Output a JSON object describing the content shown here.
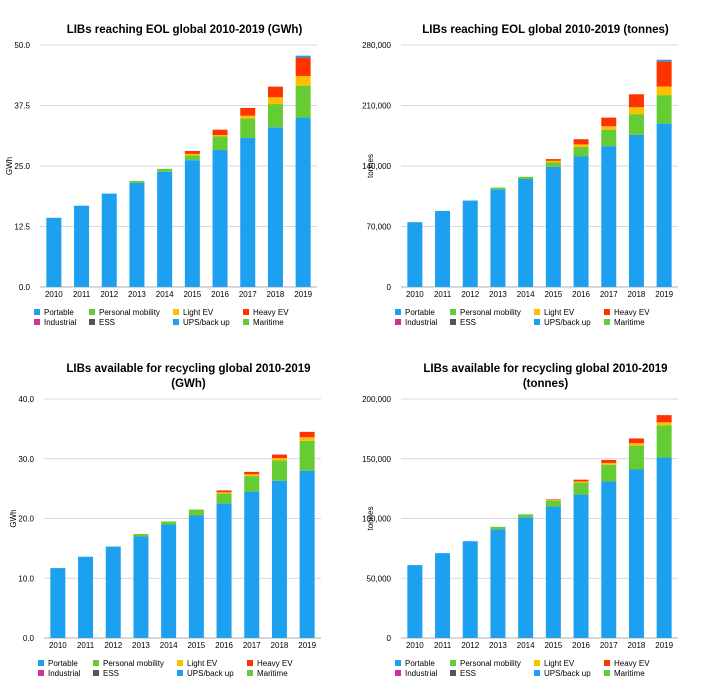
{
  "colors": {
    "portable": "#1ea0f0",
    "personal_mobility": "#66cc33",
    "light_ev": "#ffbf00",
    "heavy_ev": "#ff3300",
    "industrial": "#cc3399",
    "ess": "#555555",
    "ups_backup": "#1ea0f0",
    "maritime": "#66cc33",
    "grid": "#cccccc"
  },
  "legend": [
    {
      "label": "Portable",
      "color": "#1ea0f0"
    },
    {
      "label": "Personal mobility",
      "color": "#66cc33"
    },
    {
      "label": "Light EV",
      "color": "#ffbf00"
    },
    {
      "label": "Heavy EV",
      "color": "#ff3300"
    },
    {
      "label": "Industrial",
      "color": "#cc3399"
    },
    {
      "label": "ESS",
      "color": "#555555"
    },
    {
      "label": "UPS/back up",
      "color": "#1ea0f0"
    },
    {
      "label": "Maritime",
      "color": "#66cc33"
    }
  ],
  "chart_data": [
    {
      "type": "bar",
      "stacked": true,
      "title": [
        "LIBs reaching EOL global 2010-2019 (GWh)"
      ],
      "ylabel": "GWh",
      "ylim": [
        0,
        50
      ],
      "yticks": [
        "0.0",
        "12.5",
        "25.0",
        "37.5",
        "50.0"
      ],
      "grid": true,
      "legend_position": "bottom",
      "categories": [
        "2010",
        "2011",
        "2012",
        "2013",
        "2014",
        "2015",
        "2016",
        "2017",
        "2018",
        "2019"
      ],
      "series": [
        {
          "name": "Portable",
          "color": "#1ea0f0",
          "values": [
            14.3,
            16.8,
            19.3,
            21.5,
            23.8,
            26.2,
            28.3,
            30.8,
            33.0,
            35.0
          ]
        },
        {
          "name": "Personal mobility",
          "color": "#66cc33",
          "values": [
            0,
            0,
            0,
            0.4,
            0.6,
            1.0,
            2.8,
            4.0,
            4.8,
            6.6
          ]
        },
        {
          "name": "Light EV",
          "color": "#ffbf00",
          "values": [
            0,
            0,
            0,
            0,
            0,
            0.3,
            0.3,
            0.6,
            1.4,
            2.0
          ]
        },
        {
          "name": "Heavy EV",
          "color": "#ff3300",
          "values": [
            0,
            0,
            0,
            0,
            0,
            0.6,
            1.1,
            1.6,
            2.2,
            3.8
          ]
        },
        {
          "name": "UPS/back up",
          "color": "#1ea0f0",
          "values": [
            0,
            0,
            0,
            0,
            0,
            0,
            0,
            0,
            0,
            0.4
          ]
        }
      ]
    },
    {
      "type": "bar",
      "stacked": true,
      "title": [
        "LIBs reaching EOL global 2010-2019 (tonnes)"
      ],
      "ylabel": "tonnes",
      "ylim": [
        0,
        280000
      ],
      "yticks": [
        "0",
        "70,000",
        "140,000",
        "210,000",
        "280,000"
      ],
      "grid": true,
      "legend_position": "bottom",
      "categories": [
        "2010",
        "2011",
        "2012",
        "2013",
        "2014",
        "2015",
        "2016",
        "2017",
        "2018",
        "2019"
      ],
      "series": [
        {
          "name": "Portable",
          "color": "#1ea0f0",
          "values": [
            75000,
            88000,
            100000,
            113000,
            125000,
            139000,
            151000,
            163000,
            176000,
            189000
          ]
        },
        {
          "name": "Personal mobility",
          "color": "#66cc33",
          "values": [
            0,
            0,
            0,
            2000,
            2500,
            5000,
            11000,
            19000,
            24000,
            33000
          ]
        },
        {
          "name": "Light EV",
          "color": "#ffbf00",
          "values": [
            0,
            0,
            0,
            0,
            0,
            2000,
            3000,
            4000,
            8000,
            10000
          ]
        },
        {
          "name": "Heavy EV",
          "color": "#ff3300",
          "values": [
            0,
            0,
            0,
            0,
            0,
            2000,
            6000,
            10000,
            15000,
            29000
          ]
        },
        {
          "name": "UPS/back up",
          "color": "#1ea0f0",
          "values": [
            0,
            0,
            0,
            0,
            0,
            0,
            0,
            0,
            0,
            2000
          ]
        }
      ]
    },
    {
      "type": "bar",
      "stacked": true,
      "title": [
        "LIBs available for recycling global 2010-2019",
        "(GWh)"
      ],
      "ylabel": "GWh",
      "ylim": [
        0,
        40
      ],
      "yticks": [
        "0.0",
        "10.0",
        "20.0",
        "30.0",
        "40.0"
      ],
      "grid": true,
      "legend_position": "bottom",
      "categories": [
        "2010",
        "2011",
        "2012",
        "2013",
        "2014",
        "2015",
        "2016",
        "2017",
        "2018",
        "2019"
      ],
      "series": [
        {
          "name": "Portable",
          "color": "#1ea0f0",
          "values": [
            11.7,
            13.6,
            15.3,
            17.0,
            19.0,
            20.5,
            22.5,
            24.5,
            26.3,
            28.0
          ]
        },
        {
          "name": "Personal mobility",
          "color": "#66cc33",
          "values": [
            0,
            0,
            0,
            0.4,
            0.5,
            1.0,
            1.7,
            2.6,
            3.4,
            5.0
          ]
        },
        {
          "name": "Light EV",
          "color": "#ffbf00",
          "values": [
            0,
            0,
            0,
            0,
            0,
            0,
            0.2,
            0.3,
            0.4,
            0.6
          ]
        },
        {
          "name": "Heavy EV",
          "color": "#ff3300",
          "values": [
            0,
            0,
            0,
            0,
            0,
            0,
            0.3,
            0.4,
            0.6,
            0.9
          ]
        }
      ]
    },
    {
      "type": "bar",
      "stacked": true,
      "title": [
        "LIBs available for recycling global 2010-2019",
        "(tonnes)"
      ],
      "ylabel": "tonnes",
      "ylim": [
        0,
        200000
      ],
      "yticks": [
        "0",
        "50,000",
        "100,000",
        "150,000",
        "200,000"
      ],
      "grid": true,
      "legend_position": "bottom",
      "categories": [
        "2010",
        "2011",
        "2012",
        "2013",
        "2014",
        "2015",
        "2016",
        "2017",
        "2018",
        "2019"
      ],
      "series": [
        {
          "name": "Portable",
          "color": "#1ea0f0",
          "values": [
            61000,
            71000,
            81000,
            91000,
            101000,
            110000,
            120000,
            131000,
            141000,
            151000
          ]
        },
        {
          "name": "Personal mobility",
          "color": "#66cc33",
          "values": [
            0,
            0,
            0,
            2000,
            2500,
            5000,
            10000,
            14000,
            20000,
            27000
          ]
        },
        {
          "name": "Light EV",
          "color": "#ffbf00",
          "values": [
            0,
            0,
            0,
            0,
            0,
            500,
            1000,
            1500,
            2000,
            2500
          ]
        },
        {
          "name": "Heavy EV",
          "color": "#ff3300",
          "values": [
            0,
            0,
            0,
            0,
            0,
            500,
            1500,
            2500,
            4000,
            6000
          ]
        }
      ]
    }
  ]
}
